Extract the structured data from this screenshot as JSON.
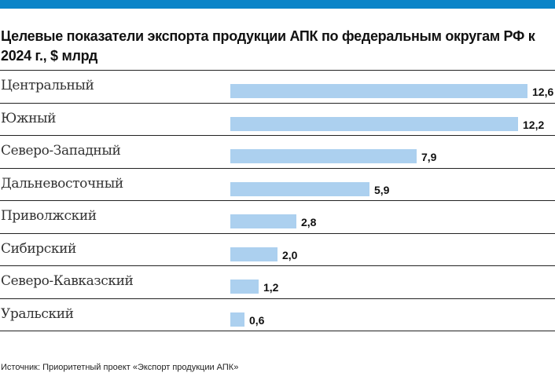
{
  "header": {
    "accent_color": "#0a84c8"
  },
  "chart_data": {
    "type": "bar",
    "orientation": "horizontal",
    "title": "Целевые показатели экспорта продукции АПК по федеральным округам РФ к 2024 г., $ млрд",
    "categories": [
      "Центральный",
      "Южный",
      "Северо-Западный",
      "Дальневосточный",
      "Приволжский",
      "Сибирский",
      "Северо-Кавказский",
      "Уральский"
    ],
    "values": [
      12.6,
      12.2,
      7.9,
      5.9,
      2.8,
      2.0,
      1.2,
      0.6
    ],
    "value_labels": [
      "12,6",
      "12,2",
      "7,9",
      "5,9",
      "2,8",
      "2,0",
      "1,2",
      "0,6"
    ],
    "bar_color": "#acd0ef",
    "xlim": [
      0,
      12.6
    ],
    "grid": false,
    "legend": "none"
  },
  "source": "Источник: Приоритетный проект «Экспорт продукции АПК»"
}
